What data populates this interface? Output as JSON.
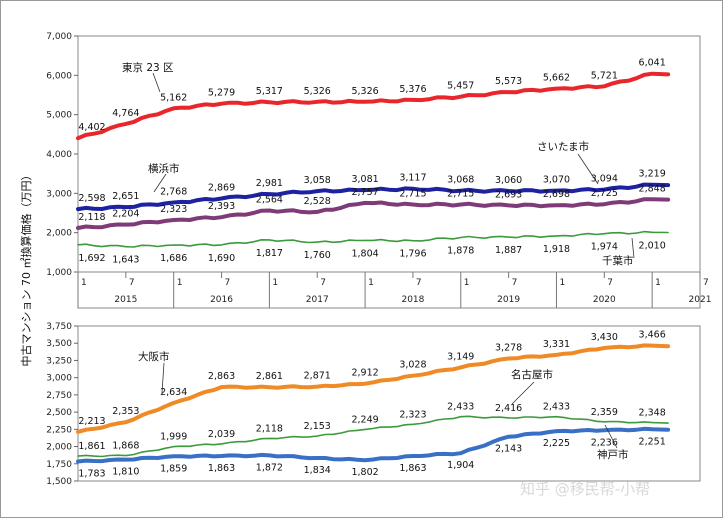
{
  "y_axis_title": "中古マンション 70 ㎡換算価格（万円）",
  "watermark": "知乎 @移民帮-小帮",
  "x_axis": {
    "month_ticks": [
      "1",
      "7"
    ],
    "years": [
      "2015",
      "2016",
      "2017",
      "2018",
      "2019",
      "2020",
      "2021"
    ]
  },
  "chart_data": [
    {
      "type": "line",
      "ylim": [
        1000,
        7000
      ],
      "ytick_labels": [
        "1,000",
        "2,000",
        "3,000",
        "4,000",
        "5,000",
        "6,000",
        "7,000"
      ],
      "x_start": "2015-01",
      "x_end": "2021-06",
      "series": [
        {
          "name": "東京 23 区",
          "color": "#e8262b",
          "labels": [
            "4,402",
            "4,764",
            "5,162",
            "5,279",
            "5,317",
            "5,326",
            "5,326",
            "5,376",
            "5,457",
            "5,573",
            "5,662",
            "5,721",
            "6,041"
          ],
          "values": [
            4402,
            4764,
            5162,
            5279,
            5317,
            5326,
            5326,
            5376,
            5457,
            5573,
            5662,
            5721,
            6041
          ]
        },
        {
          "name": "横浜市",
          "color": "#1e22a0",
          "labels": [
            "2,598",
            "2,651",
            "2,768",
            "2,869",
            "2,981",
            "3,058",
            "3,081",
            "3,117",
            "3,068",
            "3,060",
            "3,070",
            "3,094",
            "3,219"
          ],
          "values": [
            2598,
            2651,
            2768,
            2869,
            2981,
            3058,
            3081,
            3117,
            3068,
            3060,
            3070,
            3094,
            3219
          ]
        },
        {
          "name": "さいたま市",
          "color": "#7f3b77",
          "labels": [
            "2,118",
            "2,204",
            "2,323",
            "2,393",
            "2,564",
            "2,528",
            "2,757",
            "2,715",
            "2,715",
            "2,693",
            "2,698",
            "2,725",
            "2,848"
          ],
          "values": [
            2118,
            2204,
            2323,
            2393,
            2564,
            2528,
            2757,
            2715,
            2715,
            2693,
            2698,
            2725,
            2848
          ]
        },
        {
          "name": "千葉市",
          "color": "#3c9a3c",
          "labels": [
            "1,692",
            "1,643",
            "1,686",
            "1,690",
            "1,817",
            "1,760",
            "1,804",
            "1,796",
            "1,878",
            "1,887",
            "1,918",
            "1,974",
            "2,010"
          ],
          "values": [
            1692,
            1643,
            1686,
            1690,
            1817,
            1760,
            1804,
            1796,
            1878,
            1887,
            1918,
            1974,
            2010
          ]
        }
      ]
    },
    {
      "type": "line",
      "ylim": [
        1500,
        3750
      ],
      "ytick_labels": [
        "1,500",
        "1,750",
        "2,000",
        "2,250",
        "2,500",
        "2,750",
        "3,000",
        "3,250",
        "3,500",
        "3,750"
      ],
      "x_start": "2015-01",
      "x_end": "2021-06",
      "series": [
        {
          "name": "大阪市",
          "color": "#ef8a25",
          "labels": [
            "2,213",
            "2,353",
            "2,634",
            "2,863",
            "2,861",
            "2,871",
            "2,912",
            "3,028",
            "3,149",
            "3,278",
            "3,331",
            "3,430",
            "3,466"
          ],
          "values": [
            2213,
            2353,
            2634,
            2863,
            2861,
            2871,
            2912,
            3028,
            3149,
            3278,
            3331,
            3430,
            3466
          ]
        },
        {
          "name": "名古屋市",
          "color": "#3c9a3c",
          "labels": [
            "1,861",
            "1,868",
            "1,999",
            "2,039",
            "2,118",
            "2,153",
            "2,249",
            "2,323",
            "2,433",
            "2,416",
            "2,433",
            "2,359",
            "2,348"
          ],
          "values": [
            1861,
            1868,
            1999,
            2039,
            2118,
            2153,
            2249,
            2323,
            2433,
            2416,
            2433,
            2359,
            2348
          ]
        },
        {
          "name": "神戸市",
          "color": "#3a6fc6",
          "labels": [
            "1,783",
            "1,810",
            "1,859",
            "1,863",
            "1,872",
            "1,834",
            "1,802",
            "1,863",
            "1,904",
            "2,143",
            "2,225",
            "2,236",
            "2,251"
          ],
          "values": [
            1783,
            1810,
            1859,
            1863,
            1872,
            1834,
            1802,
            1863,
            1904,
            2143,
            2225,
            2236,
            2251
          ]
        }
      ]
    }
  ]
}
